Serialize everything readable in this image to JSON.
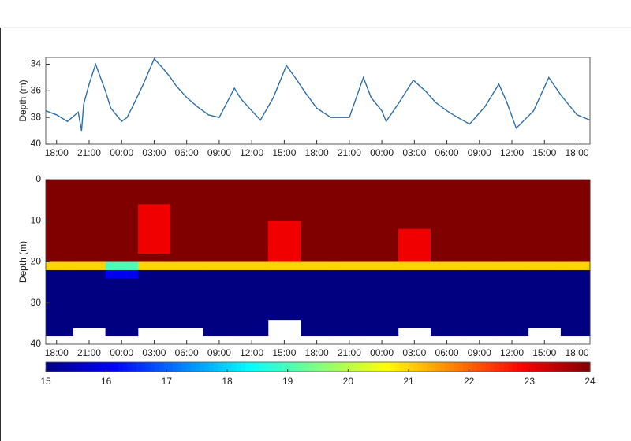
{
  "chart_data": [
    {
      "type": "line",
      "ylabel": "Depth (m)",
      "x": [
        -1,
        0,
        1,
        2,
        2.3,
        2.5,
        3,
        3.6,
        4.5,
        5,
        6,
        6.5,
        7,
        8,
        9,
        9.8,
        10.5,
        11,
        12,
        13,
        14,
        15,
        16.4,
        17,
        18,
        18.8,
        20,
        21.2,
        22,
        23,
        24,
        25.3,
        27,
        28.3,
        29,
        30,
        30.4,
        31.5,
        32.9,
        34,
        35,
        36,
        37,
        38.1,
        39.5,
        40.8,
        41.5,
        42.4,
        44,
        45.4,
        46.5,
        48,
        49.2
      ],
      "series": [
        {
          "color": "#2f6fa8",
          "values": [
            37.5,
            37.8,
            38.3,
            37.6,
            39,
            37,
            35.5,
            34,
            36,
            37.3,
            38.3,
            38,
            37.2,
            35.5,
            33.6,
            34.3,
            35,
            35.6,
            36.5,
            37.2,
            37.8,
            38,
            35.8,
            36.6,
            37.5,
            38.2,
            36.5,
            34.1,
            35,
            36.2,
            37.3,
            38,
            38,
            35,
            36.5,
            37.5,
            38.3,
            37,
            35.2,
            36,
            36.9,
            37.5,
            38,
            38.5,
            37.2,
            35.5,
            36.8,
            38.8,
            37.5,
            35,
            36.3,
            37.8,
            38.2
          ]
        }
      ],
      "xlim": [
        -1,
        49.2
      ],
      "ylim": [
        33.5,
        40
      ],
      "y_inverted": true,
      "xticks": [
        {
          "value": 0,
          "label": "18:00"
        },
        {
          "value": 3,
          "label": "21:00"
        },
        {
          "value": 6,
          "label": "00:00"
        },
        {
          "value": 9,
          "label": "03:00"
        },
        {
          "value": 12,
          "label": "06:00"
        },
        {
          "value": 15,
          "label": "09:00"
        },
        {
          "value": 18,
          "label": "12:00"
        },
        {
          "value": 21,
          "label": "15:00"
        },
        {
          "value": 24,
          "label": "18:00"
        },
        {
          "value": 27,
          "label": "21:00"
        },
        {
          "value": 30,
          "label": "00:00"
        },
        {
          "value": 33,
          "label": "03:00"
        },
        {
          "value": 36,
          "label": "06:00"
        },
        {
          "value": 39,
          "label": "09:00"
        },
        {
          "value": 42,
          "label": "12:00"
        },
        {
          "value": 45,
          "label": "15:00"
        },
        {
          "value": 48,
          "label": "18:00"
        }
      ],
      "yticks": [
        34,
        36,
        38,
        40
      ]
    },
    {
      "type": "heatmap",
      "ylabel": "Depth (m)",
      "xbins": [
        -1,
        1.5,
        4.5,
        7.5,
        10.5,
        13.5,
        16.5,
        19.5,
        22.5,
        25.5,
        28.5,
        31.5,
        34.5,
        37.5,
        40.5,
        43.5,
        46.5,
        49.2
      ],
      "ybins": [
        0,
        2,
        4,
        6,
        8,
        10,
        12,
        14,
        16,
        18,
        20,
        22,
        24,
        26,
        28,
        30,
        32,
        34,
        36,
        38,
        40
      ],
      "values": [
        [
          24,
          24,
          24,
          24,
          24,
          24,
          24,
          24,
          24,
          24,
          21,
          15,
          15,
          15,
          15,
          15,
          15,
          15,
          15,
          null
        ],
        [
          24,
          24,
          24,
          24,
          24,
          24,
          24,
          24,
          24,
          24,
          21,
          15,
          15,
          15,
          15,
          15,
          15,
          15,
          null,
          null
        ],
        [
          24,
          24,
          24,
          24,
          24,
          24,
          24,
          24,
          24,
          24,
          19,
          16,
          15,
          15,
          15,
          15,
          15,
          15,
          15,
          null
        ],
        [
          24,
          24,
          24,
          23,
          23,
          23,
          23,
          23,
          23,
          24,
          21,
          15,
          15,
          15,
          15,
          15,
          15,
          15,
          null,
          null
        ],
        [
          24,
          24,
          24,
          24,
          24,
          24,
          24,
          24,
          24,
          24,
          21,
          15,
          15,
          15,
          15,
          15,
          15,
          15,
          null,
          null
        ],
        [
          24,
          24,
          24,
          24,
          24,
          24,
          24,
          24,
          24,
          24,
          21,
          15,
          15,
          15,
          15,
          15,
          15,
          15,
          15,
          null
        ],
        [
          24,
          24,
          24,
          24,
          24,
          24,
          24,
          24,
          24,
          24,
          21,
          15,
          15,
          15,
          15,
          15,
          15,
          15,
          15,
          null
        ],
        [
          24,
          24,
          24,
          24,
          24,
          23,
          23,
          23,
          23,
          23,
          21,
          15,
          15,
          15,
          15,
          15,
          15,
          null,
          null,
          null
        ],
        [
          24,
          24,
          24,
          24,
          24,
          24,
          24,
          24,
          24,
          24,
          21,
          15,
          15,
          15,
          15,
          15,
          15,
          15,
          15,
          null
        ],
        [
          24,
          24,
          24,
          24,
          24,
          24,
          24,
          24,
          24,
          24,
          21,
          15,
          15,
          15,
          15,
          15,
          15,
          15,
          15,
          null
        ],
        [
          24,
          24,
          24,
          24,
          24,
          24,
          24,
          24,
          24,
          24,
          21,
          15,
          15,
          15,
          15,
          15,
          15,
          15,
          15,
          null
        ],
        [
          24,
          24,
          24,
          24,
          24,
          24,
          23,
          23,
          23,
          23,
          21,
          15,
          15,
          15,
          15,
          15,
          15,
          15,
          null,
          null
        ],
        [
          24,
          24,
          24,
          24,
          24,
          24,
          24,
          24,
          24,
          24,
          21,
          15,
          15,
          15,
          15,
          15,
          15,
          15,
          15,
          null
        ],
        [
          24,
          24,
          24,
          24,
          24,
          24,
          24,
          24,
          24,
          24,
          21,
          15,
          15,
          15,
          15,
          15,
          15,
          15,
          15,
          null
        ],
        [
          24,
          24,
          24,
          24,
          24,
          24,
          24,
          24,
          24,
          24,
          21,
          15,
          15,
          15,
          15,
          15,
          15,
          15,
          15,
          null
        ],
        [
          24,
          24,
          24,
          24,
          24,
          24,
          24,
          24,
          24,
          24,
          21,
          15,
          15,
          15,
          15,
          15,
          15,
          15,
          null,
          null
        ],
        [
          24,
          24,
          24,
          24,
          24,
          24,
          24,
          24,
          24,
          24,
          21,
          15,
          15,
          15,
          15,
          15,
          15,
          15,
          15,
          null
        ]
      ],
      "xlim": [
        -1,
        49.2
      ],
      "ylim": [
        0,
        40
      ],
      "y_inverted": true,
      "xticks": [
        {
          "value": 0,
          "label": "18:00"
        },
        {
          "value": 3,
          "label": "21:00"
        },
        {
          "value": 6,
          "label": "00:00"
        },
        {
          "value": 9,
          "label": "03:00"
        },
        {
          "value": 12,
          "label": "06:00"
        },
        {
          "value": 15,
          "label": "09:00"
        },
        {
          "value": 18,
          "label": "12:00"
        },
        {
          "value": 21,
          "label": "15:00"
        },
        {
          "value": 24,
          "label": "18:00"
        },
        {
          "value": 27,
          "label": "21:00"
        },
        {
          "value": 30,
          "label": "00:00"
        },
        {
          "value": 33,
          "label": "03:00"
        },
        {
          "value": 36,
          "label": "06:00"
        },
        {
          "value": 39,
          "label": "09:00"
        },
        {
          "value": 42,
          "label": "12:00"
        },
        {
          "value": 45,
          "label": "15:00"
        },
        {
          "value": 48,
          "label": "18:00"
        }
      ],
      "yticks": [
        0,
        10,
        20,
        30,
        40
      ],
      "colormap": "jet",
      "clim": [
        15,
        24
      ],
      "cticks": [
        15,
        16,
        17,
        18,
        19,
        20,
        21,
        22,
        23,
        24
      ]
    }
  ]
}
